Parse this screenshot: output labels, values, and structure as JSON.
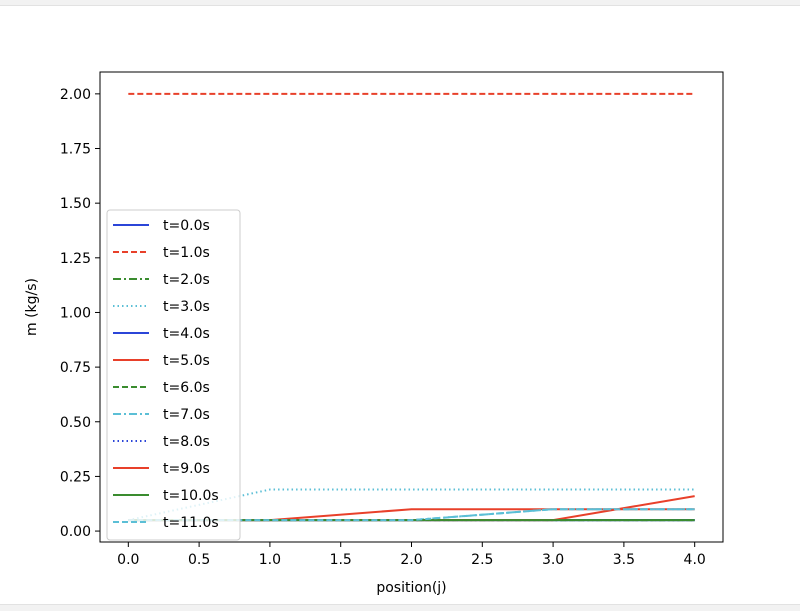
{
  "chart_data": {
    "type": "line",
    "xlabel": "position(j)",
    "ylabel": "m (kg/s)",
    "xlim": [
      -0.2,
      4.2
    ],
    "ylim": [
      -0.05,
      2.1
    ],
    "xticks": [
      "0.0",
      "0.5",
      "1.0",
      "1.5",
      "2.0",
      "2.5",
      "3.0",
      "3.5",
      "4.0"
    ],
    "yticks": [
      "0.00",
      "0.25",
      "0.50",
      "0.75",
      "1.00",
      "1.25",
      "1.50",
      "1.75",
      "2.00"
    ],
    "grid": false,
    "legend_position": "lower-left",
    "x": [
      0,
      1,
      2,
      3,
      4
    ],
    "series": [
      {
        "name": "t=0.0s",
        "color": "#2b45d8",
        "style": "solid",
        "values": [
          0.05,
          0.05,
          0.05,
          0.05,
          0.05
        ]
      },
      {
        "name": "t=1.0s",
        "color": "#e8402a",
        "style": "dashed",
        "values": [
          2.0,
          2.0,
          2.0,
          2.0,
          2.0
        ]
      },
      {
        "name": "t=2.0s",
        "color": "#3a8c2f",
        "style": "dashdot",
        "values": [
          0.05,
          0.05,
          0.05,
          0.05,
          0.05
        ]
      },
      {
        "name": "t=3.0s",
        "color": "#5bbfd6",
        "style": "dotted",
        "values": [
          0.05,
          0.19,
          0.19,
          0.19,
          0.19
        ]
      },
      {
        "name": "t=4.0s",
        "color": "#2b45d8",
        "style": "solid",
        "values": [
          0.05,
          0.05,
          0.05,
          0.05,
          0.05
        ]
      },
      {
        "name": "t=5.0s",
        "color": "#e8402a",
        "style": "solid",
        "values": [
          0.05,
          0.05,
          0.1,
          0.1,
          0.1
        ]
      },
      {
        "name": "t=6.0s",
        "color": "#3a8c2f",
        "style": "dashed",
        "values": [
          0.05,
          0.05,
          0.05,
          0.05,
          0.05
        ]
      },
      {
        "name": "t=7.0s",
        "color": "#5bbfd6",
        "style": "dashdot",
        "values": [
          0.05,
          0.05,
          0.05,
          0.1,
          0.1
        ]
      },
      {
        "name": "t=8.0s",
        "color": "#2b45d8",
        "style": "dotted",
        "values": [
          0.05,
          0.05,
          0.05,
          0.05,
          0.05
        ]
      },
      {
        "name": "t=9.0s",
        "color": "#e8402a",
        "style": "solid",
        "values": [
          0.05,
          0.05,
          0.05,
          0.05,
          0.16
        ]
      },
      {
        "name": "t=10.0s",
        "color": "#3a8c2f",
        "style": "solid",
        "values": [
          0.05,
          0.05,
          0.05,
          0.05,
          0.05
        ]
      },
      {
        "name": "t=11.0s",
        "color": "#5bbfd6",
        "style": "dashed",
        "values": [
          0.05,
          0.05,
          0.05,
          0.1,
          0.1
        ]
      }
    ]
  }
}
